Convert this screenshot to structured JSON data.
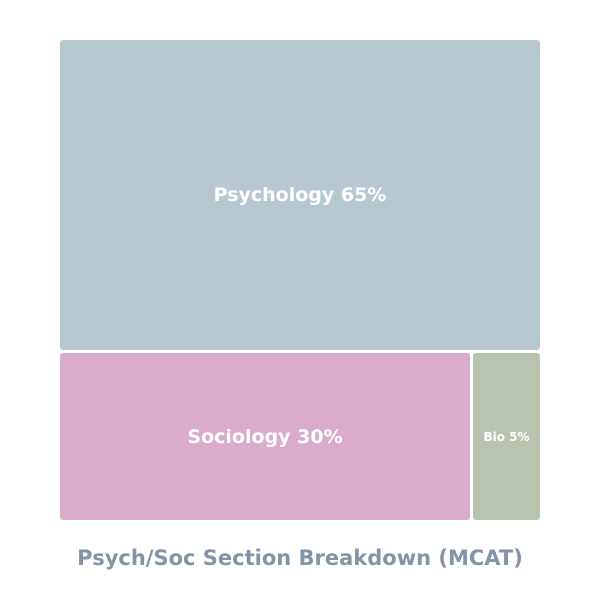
{
  "chart_data": {
    "type": "treemap",
    "title": "Psych/Soc Section Breakdown (MCAT)",
    "categories": [
      "Psychology",
      "Sociology",
      "Bio"
    ],
    "values": [
      65,
      30,
      5
    ],
    "unit": "%",
    "labels": [
      "Psychology 65%",
      "Sociology 30%",
      "Bio 5%"
    ],
    "colors": [
      "#b7c8d1",
      "#daabcb",
      "#b8c3b0"
    ],
    "legend": "none"
  },
  "title": "Psych/Soc Section Breakdown (MCAT)"
}
